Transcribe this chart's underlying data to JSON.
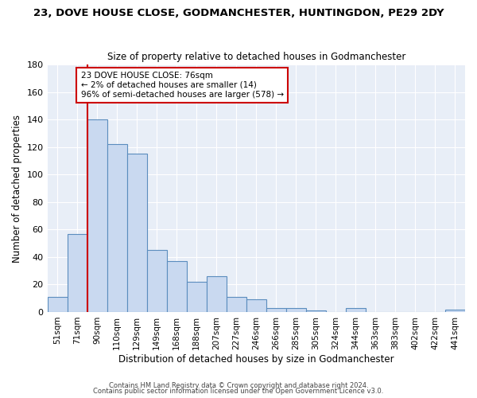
{
  "title": "23, DOVE HOUSE CLOSE, GODMANCHESTER, HUNTINGDON, PE29 2DY",
  "subtitle": "Size of property relative to detached houses in Godmanchester",
  "xlabel": "Distribution of detached houses by size in Godmanchester",
  "ylabel": "Number of detached properties",
  "bin_labels": [
    "51sqm",
    "71sqm",
    "90sqm",
    "110sqm",
    "129sqm",
    "149sqm",
    "168sqm",
    "188sqm",
    "207sqm",
    "227sqm",
    "246sqm",
    "266sqm",
    "285sqm",
    "305sqm",
    "324sqm",
    "344sqm",
    "363sqm",
    "383sqm",
    "402sqm",
    "422sqm",
    "441sqm"
  ],
  "bar_values": [
    11,
    57,
    140,
    122,
    115,
    45,
    37,
    22,
    26,
    11,
    9,
    3,
    3,
    1,
    0,
    3,
    0,
    0,
    0,
    0,
    2
  ],
  "bar_color": "#c9d9f0",
  "bar_edge_color": "#5b8dbe",
  "vline_color": "#cc0000",
  "annotation_text": "23 DOVE HOUSE CLOSE: 76sqm\n← 2% of detached houses are smaller (14)\n96% of semi-detached houses are larger (578) →",
  "annotation_box_color": "#ffffff",
  "annotation_box_edge_color": "#cc0000",
  "ylim": [
    0,
    180
  ],
  "yticks": [
    0,
    20,
    40,
    60,
    80,
    100,
    120,
    140,
    160,
    180
  ],
  "bg_color": "#e8eef7",
  "footer_line1": "Contains HM Land Registry data © Crown copyright and database right 2024.",
  "footer_line2": "Contains public sector information licensed under the Open Government Licence v3.0."
}
